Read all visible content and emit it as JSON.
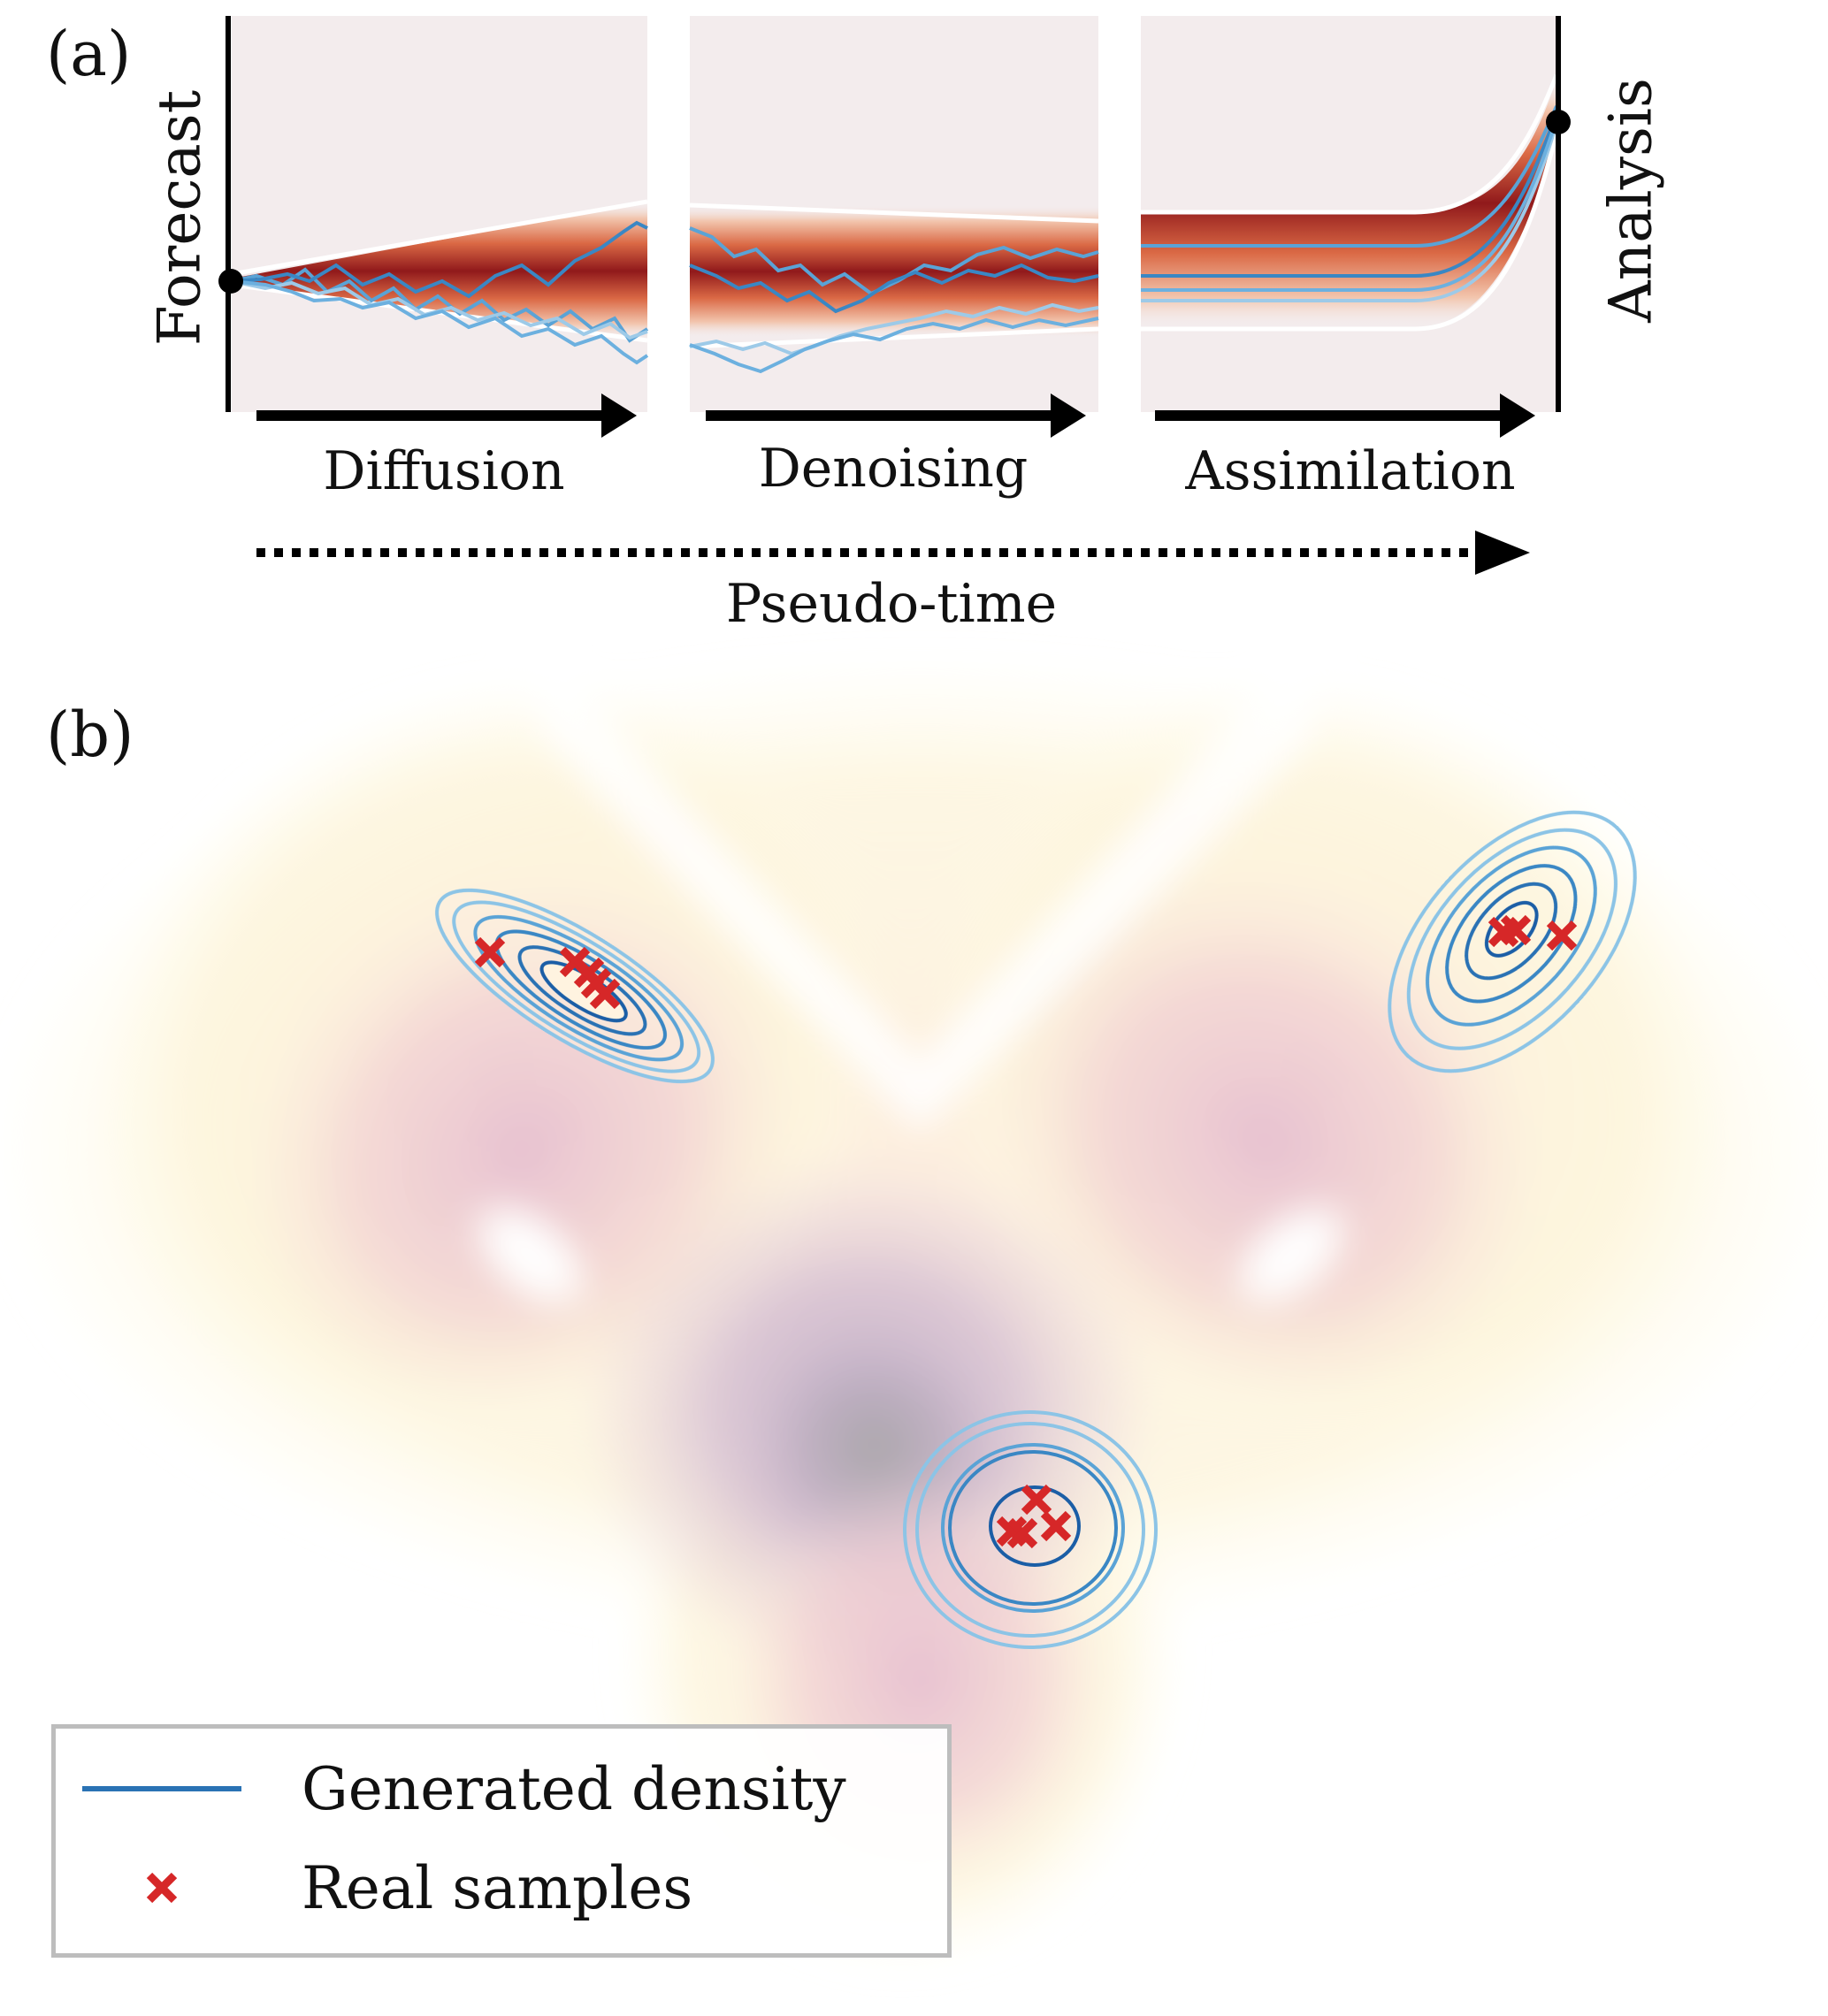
{
  "panel_a": {
    "tag": "(a)",
    "left_label": "Forecast",
    "right_label": "Analysis",
    "stages": [
      "Diffusion",
      "Denoising",
      "Assimilation"
    ],
    "time_label": "Pseudo-time"
  },
  "panel_b": {
    "tag": "(b)",
    "legend": {
      "generated": "Generated density",
      "real": "Real samples"
    }
  },
  "colors": {
    "ensemble_dark": "#8b0e10",
    "ensemble_mid": "#d9623c",
    "ensemble_light": "#f2c3aa",
    "background_panel": "#f3eced",
    "trajectory_blue": "#5aa3d6",
    "trajectory_light": "#9dcae8",
    "contour_dark": "#1b5ea6",
    "contour_light": "#8cc4e6",
    "sample_red": "#d62728"
  }
}
